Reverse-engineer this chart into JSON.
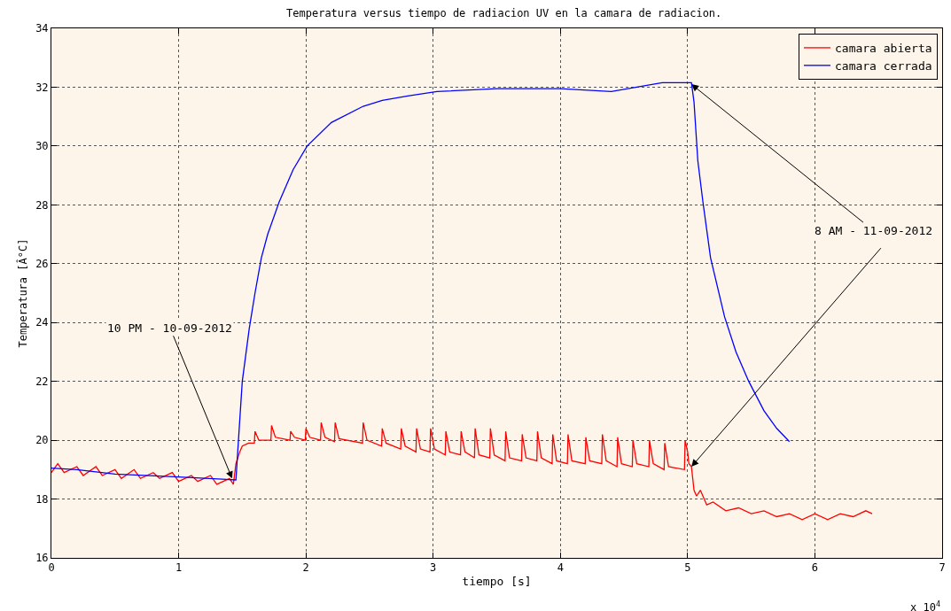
{
  "chart_data": {
    "type": "line",
    "title": "Temperatura versus tiempo de radiacion UV en la camara de radiacion.",
    "xlabel": "tiempo [s]",
    "ylabel": "Temperatura [Â°C]",
    "xlim": [
      0,
      7
    ],
    "xticks": [
      0,
      1,
      2,
      3,
      4,
      5,
      6,
      7
    ],
    "ylim": [
      16,
      34
    ],
    "yticks": [
      16,
      18,
      20,
      22,
      24,
      26,
      28,
      30,
      32,
      34
    ],
    "grid": true,
    "legend": "top right",
    "line_style": "solid",
    "marker": "none",
    "series": [
      {
        "name": "camara abierta",
        "color": "#ff0000",
        "x": [
          0,
          0.05,
          0.1,
          0.2,
          0.25,
          0.35,
          0.4,
          0.5,
          0.55,
          0.65,
          0.7,
          0.8,
          0.85,
          0.95,
          1.0,
          1.1,
          1.15,
          1.25,
          1.3,
          1.4,
          1.43,
          1.45,
          1.48,
          1.5,
          1.55,
          1.595,
          1.6,
          1.63,
          1.725,
          1.73,
          1.76,
          1.875,
          1.88,
          1.91,
          1.995,
          2.0,
          2.03,
          2.115,
          2.12,
          2.15,
          2.225,
          2.23,
          2.26,
          2.445,
          2.45,
          2.48,
          2.595,
          2.6,
          2.63,
          2.745,
          2.75,
          2.78,
          2.865,
          2.87,
          2.9,
          2.975,
          2.98,
          3.01,
          3.095,
          3.1,
          3.13,
          3.215,
          3.22,
          3.25,
          3.325,
          3.33,
          3.36,
          3.445,
          3.45,
          3.48,
          3.565,
          3.57,
          3.6,
          3.695,
          3.7,
          3.73,
          3.815,
          3.82,
          3.85,
          3.935,
          3.94,
          3.97,
          4.055,
          4.06,
          4.09,
          4.195,
          4.2,
          4.23,
          4.325,
          4.33,
          4.36,
          4.445,
          4.45,
          4.48,
          4.565,
          4.57,
          4.6,
          4.695,
          4.7,
          4.73,
          4.815,
          4.82,
          4.85,
          4.975,
          4.98,
          5.0,
          5.01,
          5.03,
          5.05,
          5.07,
          5.1,
          5.15,
          5.2,
          5.3,
          5.4,
          5.5,
          5.6,
          5.7,
          5.8,
          5.9,
          6.0,
          6.1,
          6.2,
          6.3,
          6.4,
          6.45
        ],
        "values": [
          18.9,
          19.2,
          18.9,
          19.1,
          18.8,
          19.1,
          18.8,
          19.0,
          18.7,
          19.0,
          18.7,
          18.9,
          18.7,
          18.9,
          18.6,
          18.8,
          18.6,
          18.8,
          18.5,
          18.7,
          18.5,
          19.2,
          19.6,
          19.8,
          19.9,
          19.9,
          20.3,
          20.0,
          20.0,
          20.5,
          20.1,
          20.0,
          20.3,
          20.1,
          20.0,
          20.4,
          20.1,
          20.0,
          20.6,
          20.1,
          19.95,
          20.6,
          20.05,
          19.9,
          20.6,
          20.0,
          19.8,
          20.4,
          19.9,
          19.7,
          20.4,
          19.8,
          19.6,
          20.4,
          19.7,
          19.6,
          20.4,
          19.7,
          19.5,
          20.3,
          19.6,
          19.5,
          20.3,
          19.6,
          19.4,
          20.4,
          19.5,
          19.4,
          20.4,
          19.5,
          19.3,
          20.3,
          19.4,
          19.3,
          20.2,
          19.4,
          19.3,
          20.3,
          19.4,
          19.2,
          20.2,
          19.3,
          19.2,
          20.2,
          19.3,
          19.2,
          20.1,
          19.3,
          19.2,
          20.2,
          19.3,
          19.1,
          20.1,
          19.2,
          19.1,
          20.0,
          19.2,
          19.1,
          20.0,
          19.2,
          19.0,
          19.9,
          19.1,
          19.0,
          20.0,
          19.6,
          19.2,
          19.1,
          18.3,
          18.1,
          18.3,
          17.8,
          17.9,
          17.6,
          17.7,
          17.5,
          17.6,
          17.4,
          17.5,
          17.3,
          17.5,
          17.3,
          17.5,
          17.4,
          17.6,
          17.5
        ]
      },
      {
        "name": "camara cerrada",
        "color": "#0000ff",
        "x": [
          0,
          0.2,
          0.5,
          1.0,
          1.45,
          1.47,
          1.5,
          1.555,
          1.6,
          1.65,
          1.7,
          1.79,
          1.9,
          2.01,
          2.2,
          2.45,
          2.6,
          2.8,
          3.03,
          3.5,
          4.0,
          4.4,
          4.6,
          4.8,
          5.03,
          5.05,
          5.08,
          5.12,
          5.18,
          5.29,
          5.38,
          5.48,
          5.6,
          5.7,
          5.8
        ],
        "values": [
          19.05,
          19.0,
          18.85,
          18.75,
          18.65,
          20.0,
          22.0,
          23.8,
          25.0,
          26.2,
          27.0,
          28.1,
          29.2,
          30.0,
          30.8,
          31.35,
          31.55,
          31.7,
          31.85,
          31.95,
          31.95,
          31.85,
          32.0,
          32.15,
          32.15,
          31.5,
          29.5,
          28.1,
          26.2,
          24.2,
          23.0,
          22.0,
          21.0,
          20.4,
          19.95
        ]
      }
    ],
    "annotations": [
      {
        "text": "10 PM - 10-09-2012",
        "x": 1.42,
        "y": 18.7
      },
      {
        "text": "8 AM - 11-09-2012",
        "x": 5.03,
        "y": 32.1
      },
      "x 10$^{4}$"
    ]
  }
}
